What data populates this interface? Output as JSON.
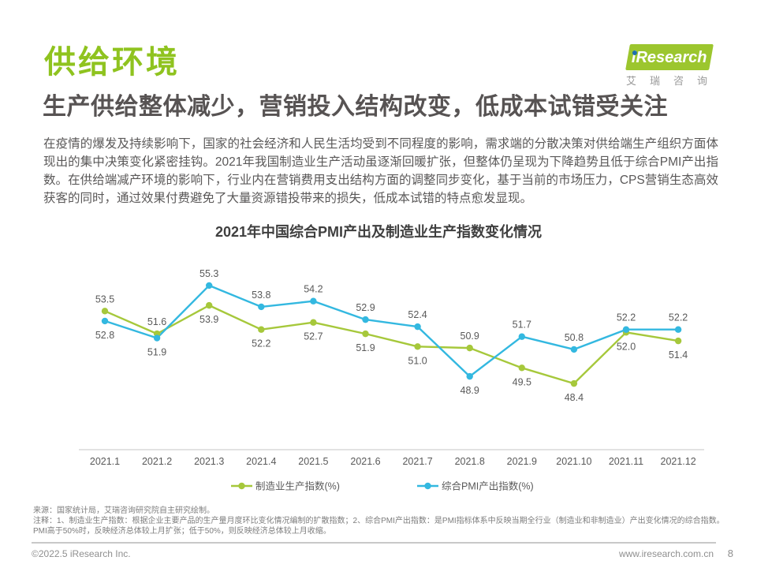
{
  "page": {
    "section_title": "供给环境",
    "headline": "生产供给整体减少，营销投入结构改变，低成本试错受关注",
    "body": "在疫情的爆发及持续影响下，国家的社会经济和人民生活均受到不同程度的影响，需求端的分散决策对供给端生产组织方面体现出的集中决策变化紧密挂钩。2021年我国制造业生产活动虽逐渐回暖扩张，但整体仍呈现为下降趋势且低于综合PMI产出指数。在供给端减产环境的影响下，行业内在营销费用支出结构方面的调整同步变化，基于当前的市场压力，CPS营销生态高效获客的同时，通过效果付费避免了大量资源错投带来的损失，低成本试错的特点愈发显现。"
  },
  "logo": {
    "brand": "iResearch",
    "subtext": "艾瑞咨询"
  },
  "chart_data": {
    "type": "line",
    "title": "2021年中国综合PMI产出及制造业生产指数变化情况",
    "categories": [
      "2021.1",
      "2021.2",
      "2021.3",
      "2021.4",
      "2021.5",
      "2021.6",
      "2021.7",
      "2021.8",
      "2021.9",
      "2021.10",
      "2021.11",
      "2021.12"
    ],
    "series": [
      {
        "name": "制造业生产指数(%)",
        "color": "#a6c83b",
        "values": [
          53.5,
          51.9,
          53.9,
          52.2,
          52.7,
          51.9,
          51.0,
          50.9,
          49.5,
          48.4,
          52.0,
          51.4
        ],
        "label_pos": [
          "above",
          "below",
          "below",
          "below",
          "below",
          "below",
          "below",
          "above",
          "below",
          "below",
          "below",
          "below"
        ]
      },
      {
        "name": "综合PMI产出指数(%)",
        "color": "#33b8e0",
        "values": [
          52.8,
          51.6,
          55.3,
          53.8,
          54.2,
          52.9,
          52.4,
          48.9,
          51.7,
          50.8,
          52.2,
          52.2
        ],
        "label_pos": [
          "below",
          "above",
          "above",
          "above",
          "above",
          "above",
          "above",
          "below",
          "above",
          "above",
          "above",
          "above"
        ]
      }
    ],
    "xlabel": "",
    "ylabel": "",
    "ylim": [
      44,
      56
    ],
    "grid": false,
    "legend_position": "bottom",
    "value_format": "0.0",
    "axis_color": "#d9d9d9"
  },
  "notes": {
    "source": "来源：国家统计局，艾瑞咨询研究院自主研究绘制。",
    "annotation": "注释：1、制造业生产指数：根据企业主要产品的生产量月度环比变化情况编制的扩散指数；2、综合PMI产出指数：是PMI指标体系中反映当期全行业（制造业和非制造业）产出变化情况的综合指数。PMI高于50%时，反映经济总体较上月扩张；低于50%，则反映经济总体较上月收缩。"
  },
  "footer": {
    "copyright": "©2022.5 iResearch Inc.",
    "website": "www.iresearch.com.cn",
    "page_number": "8"
  },
  "colors": {
    "brand_green": "#8fc31f",
    "logo_green": "#9cc62e",
    "logo_dot_blue": "#1e6fae",
    "series_green": "#a6c83b",
    "series_blue": "#33b8e0"
  }
}
